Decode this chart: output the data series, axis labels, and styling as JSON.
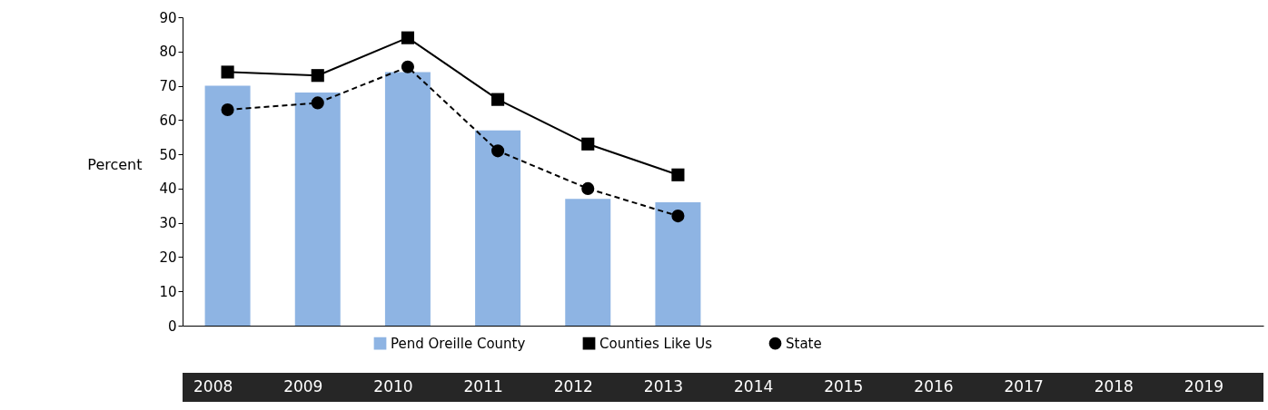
{
  "chart_data": {
    "type": "bar",
    "ylabel": "Percent",
    "categories": [
      "2008",
      "2009",
      "2010",
      "2011",
      "2012",
      "2013",
      "2014",
      "2015",
      "2016",
      "2017",
      "2018",
      "2019"
    ],
    "series": [
      {
        "name": "Pend Oreille County",
        "type": "bar",
        "color": "#8eb4e3",
        "values": [
          70,
          68,
          74,
          57,
          37,
          36,
          null,
          null,
          null,
          null,
          null,
          null
        ]
      },
      {
        "name": "Counties Like Us",
        "type": "line",
        "color": "#000000",
        "marker": "square",
        "line_style": "solid",
        "values": [
          74,
          73,
          84,
          66,
          53,
          44,
          null,
          null,
          null,
          null,
          null,
          null
        ]
      },
      {
        "name": "State",
        "type": "line",
        "color": "#000000",
        "marker": "circle",
        "line_style": "dashed",
        "values": [
          63,
          65,
          75.5,
          51,
          40,
          32,
          null,
          null,
          null,
          null,
          null,
          null
        ]
      }
    ],
    "ylim": [
      0,
      90
    ],
    "yticks": [
      0,
      10,
      20,
      30,
      40,
      50,
      60,
      70,
      80,
      90
    ],
    "grid": false,
    "legend": "bottom"
  }
}
